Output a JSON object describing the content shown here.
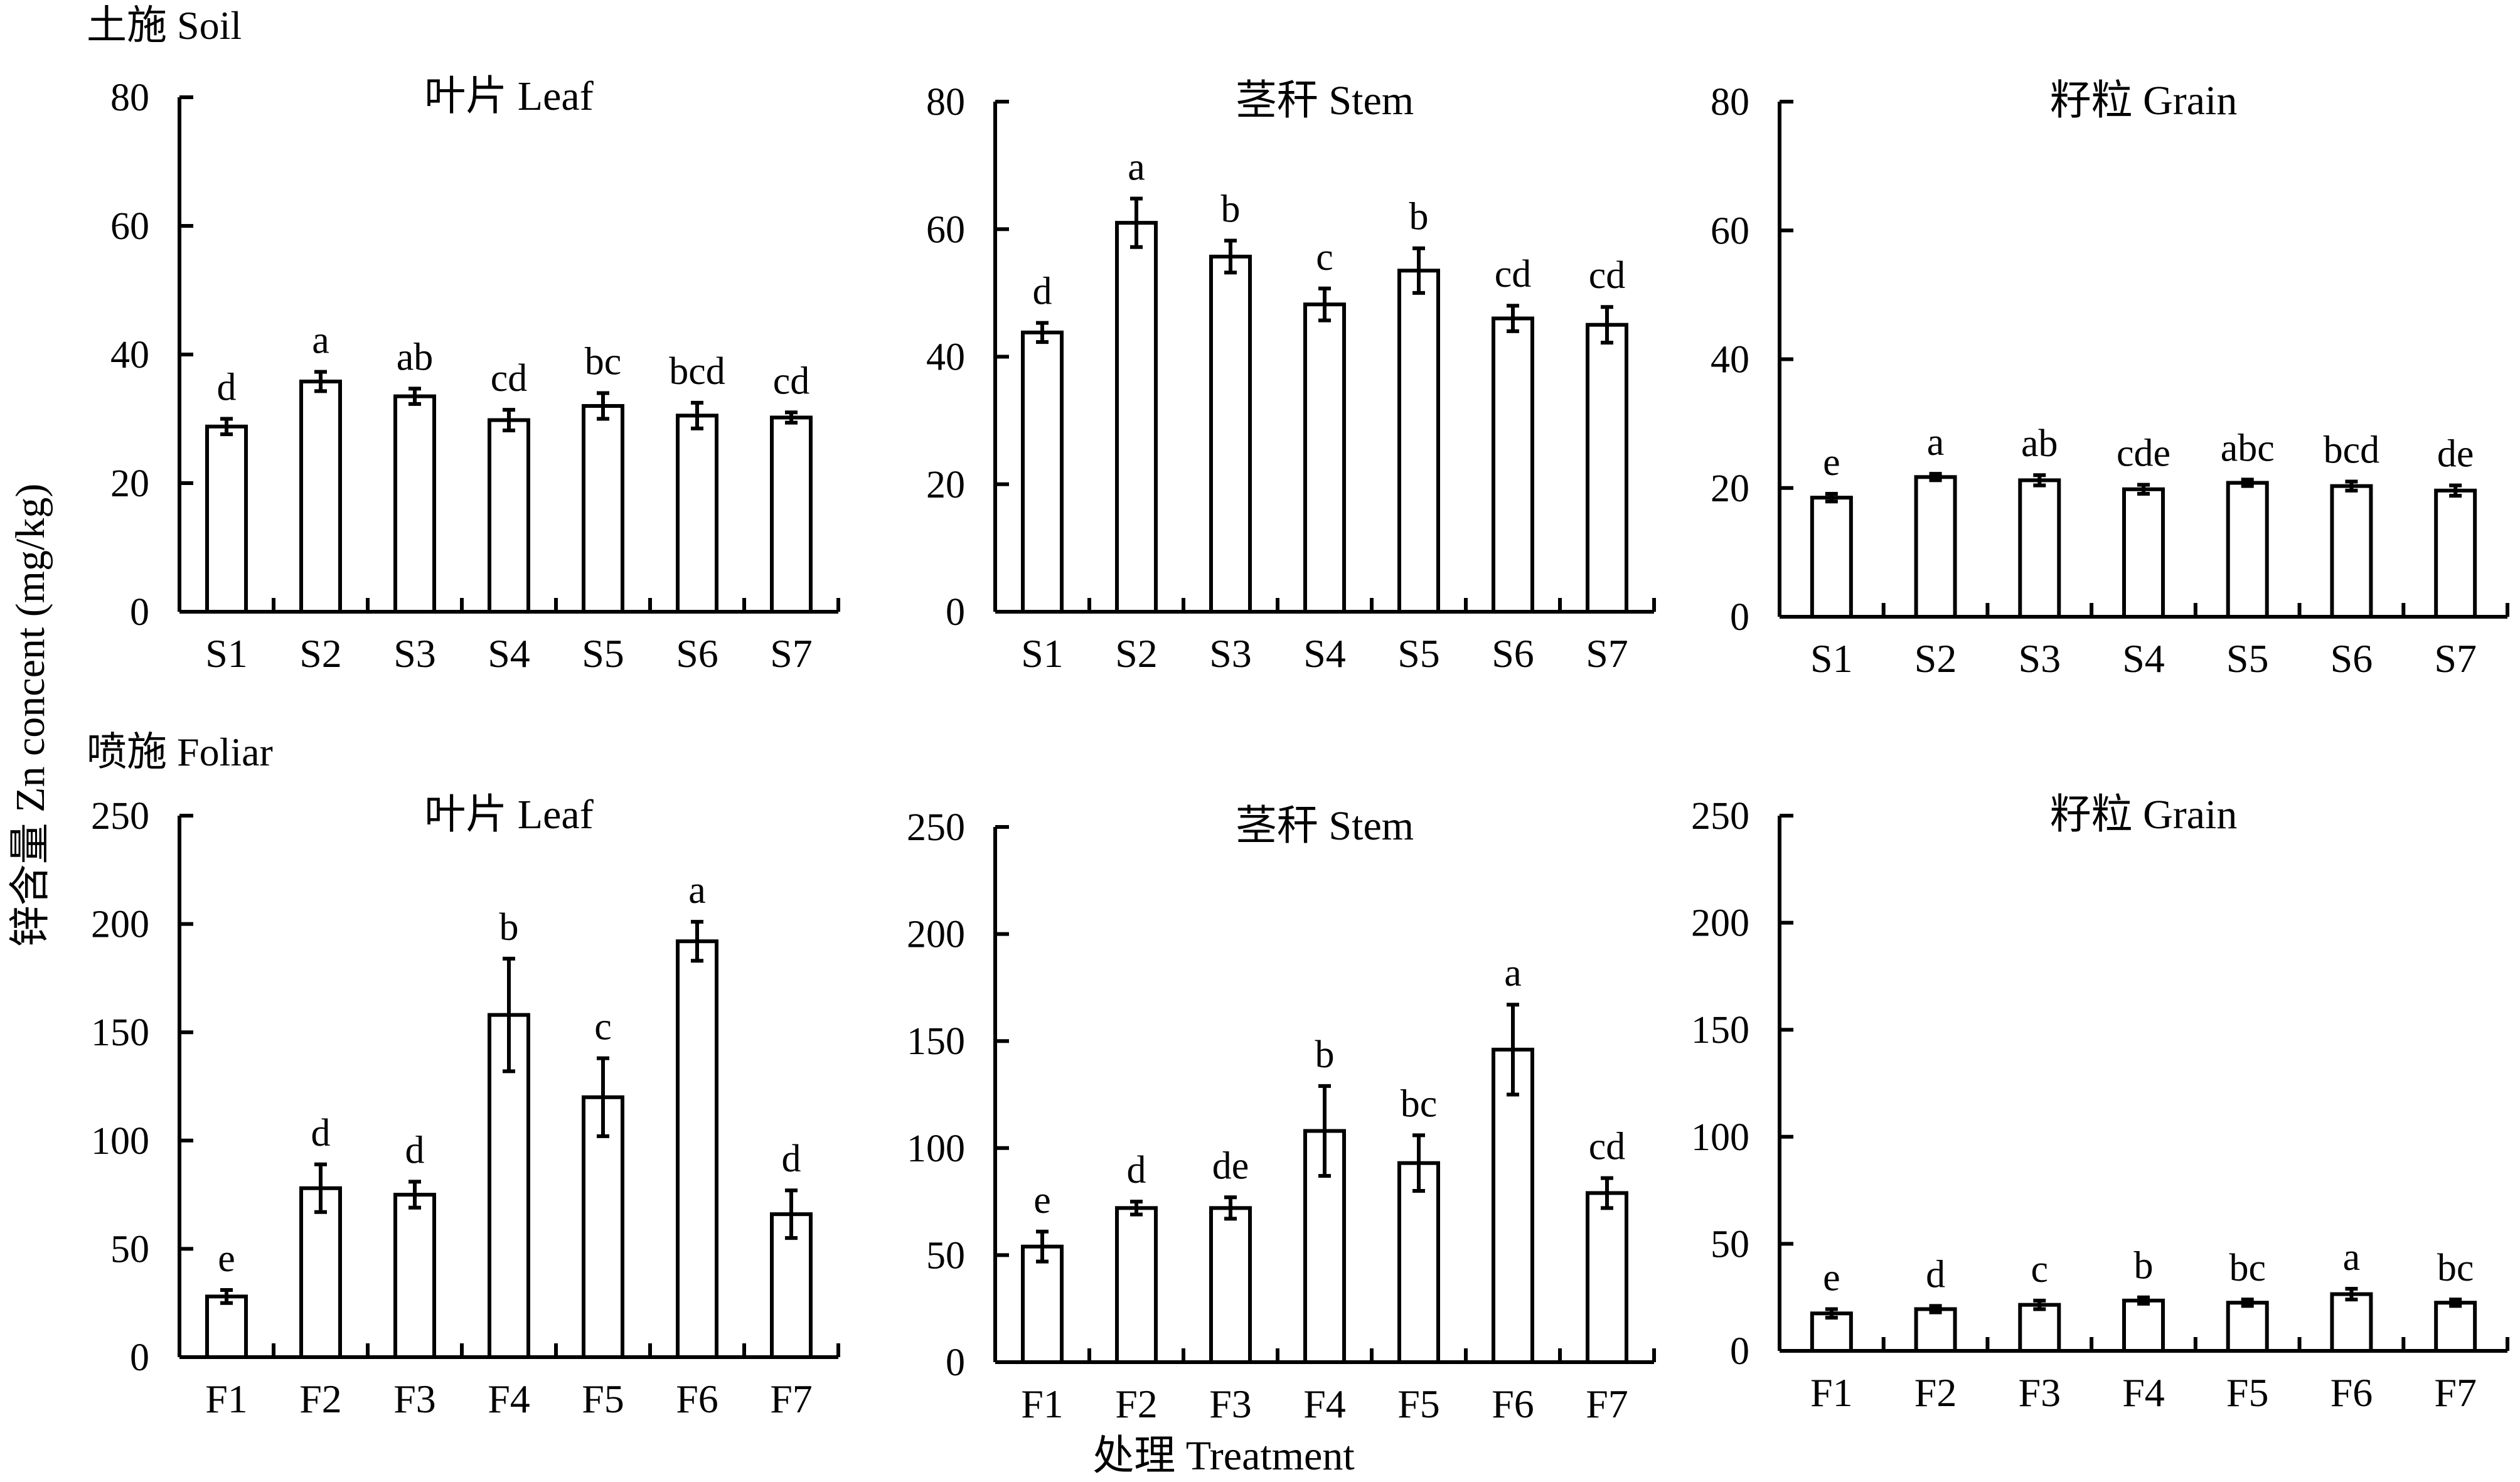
{
  "ylabel": "锌含量 Zn concent (mg/kg)",
  "xlabel": "处理 Treatment",
  "sections": [
    {
      "name": "soil",
      "title": "土施 Soil"
    },
    {
      "name": "foliar",
      "title": "喷施 Foliar"
    }
  ],
  "chart_data": [
    {
      "type": "bar",
      "section": "soil",
      "title": "叶片 Leaf",
      "categories": [
        "S1",
        "S2",
        "S3",
        "S4",
        "S5",
        "S6",
        "S7"
      ],
      "values": [
        28.8,
        35.8,
        33.5,
        29.8,
        32,
        30.5,
        30.2
      ],
      "errors": [
        1.2,
        1.5,
        1.2,
        1.6,
        2,
        2,
        0.8
      ],
      "significance": [
        "d",
        "a",
        "ab",
        "cd",
        "bc",
        "bcd",
        "cd"
      ],
      "ylim": [
        0,
        80
      ],
      "yticks": [
        0,
        20,
        40,
        60,
        80
      ]
    },
    {
      "type": "bar",
      "section": "soil",
      "title": "茎秆 Stem",
      "categories": [
        "S1",
        "S2",
        "S3",
        "S4",
        "S5",
        "S6",
        "S7"
      ],
      "values": [
        43.8,
        61,
        55.7,
        48.2,
        53.5,
        46,
        45
      ],
      "errors": [
        1.5,
        3.8,
        2.5,
        2.5,
        3.5,
        2,
        2.8
      ],
      "significance": [
        "d",
        "a",
        "b",
        "c",
        "b",
        "cd",
        "cd"
      ],
      "ylim": [
        0,
        80
      ],
      "yticks": [
        0,
        20,
        40,
        60,
        80
      ]
    },
    {
      "type": "bar",
      "section": "soil",
      "title": "籽粒 Grain",
      "categories": [
        "S1",
        "S2",
        "S3",
        "S4",
        "S5",
        "S6",
        "S7"
      ],
      "values": [
        18.5,
        21.7,
        21.2,
        19.8,
        20.8,
        20.3,
        19.6
      ],
      "errors": [
        0.6,
        0.5,
        0.8,
        0.7,
        0.5,
        0.7,
        0.8
      ],
      "significance": [
        "e",
        "a",
        "ab",
        "cde",
        "abc",
        "bcd",
        "de"
      ],
      "ylim": [
        0,
        80
      ],
      "yticks": [
        0,
        20,
        40,
        60,
        80
      ]
    },
    {
      "type": "bar",
      "section": "foliar",
      "title": "叶片 Leaf",
      "categories": [
        "F1",
        "F2",
        "F3",
        "F4",
        "F5",
        "F6",
        "F7"
      ],
      "values": [
        28,
        78,
        75,
        158,
        120,
        192,
        66
      ],
      "errors": [
        3,
        11,
        6,
        26,
        18,
        9,
        11
      ],
      "significance": [
        "e",
        "d",
        "d",
        "b",
        "c",
        "a",
        "d"
      ],
      "ylim": [
        0,
        250
      ],
      "yticks": [
        0,
        50,
        100,
        150,
        200,
        250
      ]
    },
    {
      "type": "bar",
      "section": "foliar",
      "title": "茎秆 Stem",
      "categories": [
        "F1",
        "F2",
        "F3",
        "F4",
        "F5",
        "F6",
        "F7"
      ],
      "values": [
        54,
        72,
        72,
        108,
        93,
        146,
        79
      ],
      "errors": [
        7,
        3,
        5,
        21,
        13,
        21,
        7
      ],
      "significance": [
        "e",
        "d",
        "de",
        "b",
        "bc",
        "a",
        "cd"
      ],
      "ylim": [
        0,
        250
      ],
      "yticks": [
        0,
        50,
        100,
        150,
        200,
        250
      ]
    },
    {
      "type": "bar",
      "section": "foliar",
      "title": "籽粒 Grain",
      "categories": [
        "F1",
        "F2",
        "F3",
        "F4",
        "F5",
        "F6",
        "F7"
      ],
      "values": [
        17.5,
        19.5,
        21.5,
        23.5,
        22.5,
        26.5,
        22.5
      ],
      "errors": [
        2,
        1.5,
        2,
        1.5,
        1.5,
        2.5,
        1.5
      ],
      "significance": [
        "e",
        "d",
        "c",
        "b",
        "bc",
        "a",
        "bc"
      ],
      "ylim": [
        0,
        250
      ],
      "yticks": [
        0,
        50,
        100,
        150,
        200,
        250
      ]
    }
  ]
}
